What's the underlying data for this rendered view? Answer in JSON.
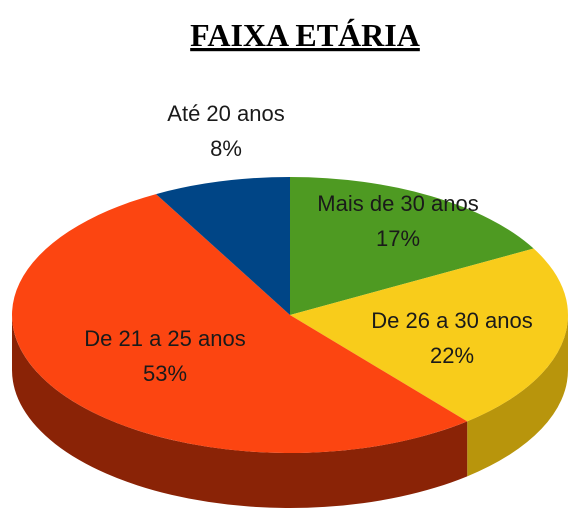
{
  "chart_data": {
    "type": "pie",
    "title": "FAIXA ETÁRIA",
    "categories": [
      "Mais de 30 anos",
      "De 26 a 30 anos",
      "De 21 a 25 anos",
      "Até 20 anos"
    ],
    "values": [
      17,
      22,
      53,
      8
    ],
    "value_labels": [
      "17%",
      "22%",
      "53%",
      "8%"
    ],
    "colors": [
      "#4e9a22",
      "#f8cc1b",
      "#fc4511",
      "#004586"
    ],
    "side_colors": [
      "#2f5e14",
      "#b8950c",
      "#8a2306",
      "#00284f"
    ]
  }
}
